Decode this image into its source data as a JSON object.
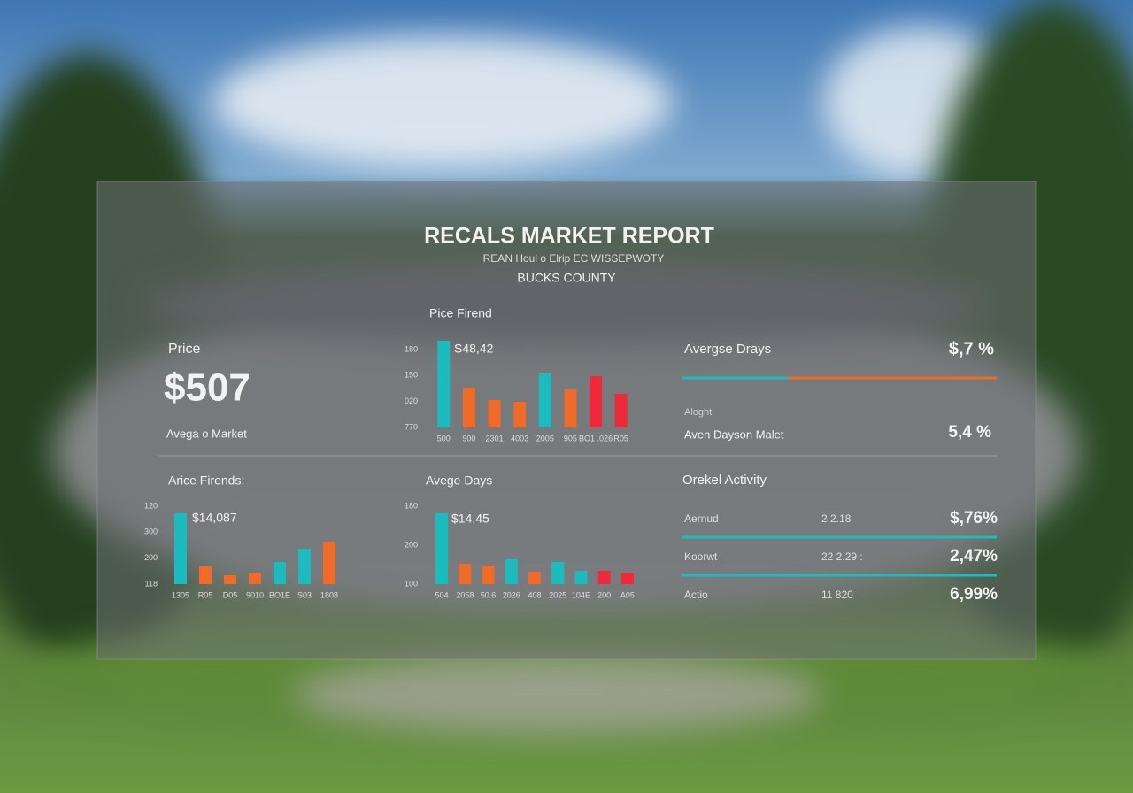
{
  "header": {
    "title": "RECALS MARKET REPORT",
    "subtitle": "REAN Houl o Elrip EC WISSEPWOTY",
    "location": "BUCKS COUNTY"
  },
  "price_card": {
    "label": "Price",
    "value": "$507",
    "caption": "Avega o Market"
  },
  "days_card": {
    "label": "Avergse Drays",
    "value": "$,7 %",
    "note": "Aloght",
    "sub_label": "Aven Dayson Malet",
    "sub_value": "5,4 %"
  },
  "activity": {
    "title": "Orekel Activity",
    "rows": [
      {
        "label": "Aernud",
        "count": "2 2.18",
        "value": "$,76%"
      },
      {
        "label": "Koorwt",
        "count": "22 2.29 :",
        "value": "2,47%"
      },
      {
        "label": "Actio",
        "count": "11 820",
        "value": "6,99%"
      }
    ]
  },
  "chart_data": [
    {
      "type": "bar",
      "title": "Pice Firend",
      "annotation": "S48,42",
      "axis_labels": [
        "180",
        "150",
        "020",
        "770"
      ],
      "categories": [
        "500",
        "900",
        "2301",
        "4003",
        "2005",
        "905",
        "BO1 .026",
        "R05"
      ],
      "values": [
        98,
        45,
        31,
        29,
        61,
        43,
        58,
        38
      ],
      "colors": [
        "#1bbcc0",
        "#f06a28",
        "#f06a28",
        "#f06a28",
        "#1bbcc0",
        "#f06a28",
        "#ee2a3a",
        "#ee2a3a"
      ],
      "ylim": [
        0,
        100
      ]
    },
    {
      "type": "bar",
      "title": "Arice Firends:",
      "annotation": "$14,087",
      "axis_labels": [
        "120",
        "300",
        "200",
        "118"
      ],
      "categories": [
        "1305",
        "R05",
        "D05",
        "9010",
        "BO1E",
        "S03",
        "1808"
      ],
      "values": [
        80,
        20,
        10,
        13,
        25,
        40,
        48
      ],
      "colors": [
        "#1bbcc0",
        "#f06a28",
        "#f06a28",
        "#f06a28",
        "#1bbcc0",
        "#1bbcc0",
        "#f06a28"
      ],
      "ylim": [
        0,
        100
      ]
    },
    {
      "type": "bar",
      "title": "Avege Days",
      "annotation": "$14,45",
      "axis_labels": [
        "180",
        "200",
        "100"
      ],
      "categories": [
        "504",
        "2058",
        "50.6",
        "2026",
        "408",
        "2025",
        "104E",
        "200",
        "A05"
      ],
      "values": [
        80,
        23,
        21,
        28,
        14,
        25,
        15,
        15,
        13
      ],
      "colors": [
        "#1bbcc0",
        "#f06a28",
        "#f06a28",
        "#1bbcc0",
        "#f06a28",
        "#1bbcc0",
        "#1bbcc0",
        "#ee2a3a",
        "#ee2a3a"
      ],
      "ylim": [
        0,
        100
      ]
    }
  ]
}
